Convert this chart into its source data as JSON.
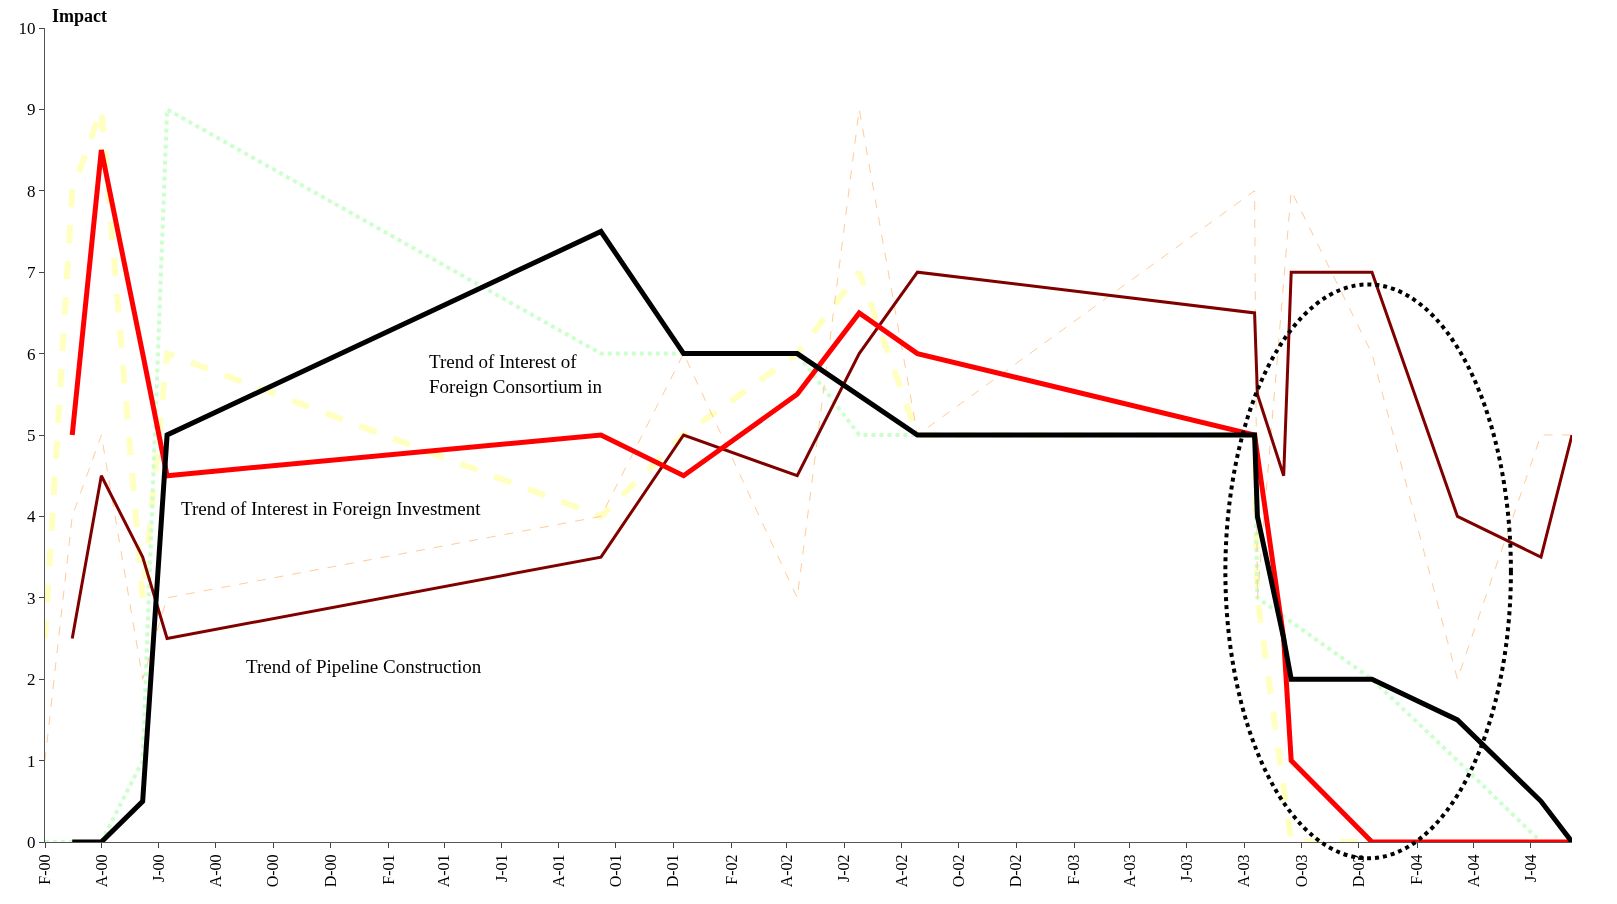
{
  "chart_data": {
    "type": "line",
    "ylabel": "Impact",
    "annotations": [
      "Trend of Interest of\nForeign Consortium in",
      "Trend of Interest in Foreign Investment",
      "Trend of Pipeline Construction"
    ],
    "series": [
      {
        "color": "#ffffc0",
        "line_style": "dashed",
        "x": [
          "2000-02-01",
          "2000-03-01",
          "2000-04-01",
          "2000-05-15",
          "2000-06-10",
          "2001-09-15",
          "2001-12-12",
          "2002-04-12",
          "2002-06-17",
          "2002-08-18",
          "2003-08-12",
          "2003-08-15",
          "2003-09-20",
          "2003-12-15"
        ],
        "values": [
          2.5,
          8,
          9,
          3,
          6,
          4,
          5,
          6,
          7,
          5,
          5,
          3,
          0,
          0
        ]
      },
      {
        "color": "#ccffcc",
        "line_style": "dotted",
        "x": [
          "2000-02-01",
          "2000-04-01",
          "2000-05-15",
          "2000-06-10",
          "2001-09-15",
          "2001-12-12",
          "2002-04-12",
          "2002-06-17",
          "2002-08-18",
          "2003-08-12",
          "2003-08-15",
          "2003-12-15",
          "2004-03-15",
          "2004-06-12"
        ],
        "values": [
          0,
          0,
          1,
          9,
          6,
          6,
          6,
          5,
          5,
          5,
          3,
          2,
          1,
          0
        ]
      },
      {
        "color": "#ffcc99",
        "line_style": "dashed",
        "x": [
          "2000-02-01",
          "2000-03-01",
          "2000-04-01",
          "2000-05-15",
          "2000-06-10",
          "2001-09-15",
          "2001-12-12",
          "2002-04-12",
          "2002-06-17",
          "2002-08-18",
          "2003-08-12",
          "2003-08-15",
          "2003-09-20",
          "2003-12-15",
          "2004-03-15",
          "2004-06-12",
          "2004-07-15"
        ],
        "values": [
          1,
          4,
          5,
          2,
          3,
          4,
          6,
          3,
          9,
          5,
          8,
          3,
          8,
          6,
          2,
          5,
          5
        ]
      },
      {
        "color": "#800000",
        "line_style": "solid",
        "x": [
          "2000-03-01",
          "2000-04-01",
          "2000-05-15",
          "2000-06-10",
          "2001-09-15",
          "2001-12-12",
          "2002-04-12",
          "2002-06-17",
          "2002-08-18",
          "2003-08-12",
          "2003-08-15",
          "2003-09-12",
          "2003-09-20",
          "2003-12-15",
          "2004-03-15",
          "2004-06-12",
          "2004-07-15"
        ],
        "values": [
          2.5,
          4.5,
          3.5,
          2.5,
          3.5,
          5,
          4.5,
          6,
          7,
          6.5,
          5.5,
          4.5,
          7,
          7,
          4,
          3.5,
          5
        ]
      },
      {
        "color": "#ff0000",
        "line_style": "solid",
        "x": [
          "2000-03-01",
          "2000-04-01",
          "2000-05-15",
          "2000-06-10",
          "2001-09-15",
          "2001-12-12",
          "2002-04-12",
          "2002-06-17",
          "2002-08-18",
          "2003-08-12",
          "2003-09-12",
          "2003-09-20",
          "2003-12-15",
          "2004-07-15"
        ],
        "values": [
          5,
          8.5,
          6,
          4.5,
          5,
          4.5,
          5.5,
          6.5,
          6,
          5,
          2.5,
          1,
          0,
          0
        ]
      },
      {
        "color": "#000000",
        "line_style": "solid",
        "x": [
          "2000-03-01",
          "2000-04-01",
          "2000-05-15",
          "2000-06-10",
          "2001-09-15",
          "2001-12-12",
          "2002-04-12",
          "2002-08-18",
          "2003-08-12",
          "2003-08-15",
          "2003-09-12",
          "2003-09-20",
          "2003-12-15",
          "2004-03-15",
          "2004-06-12",
          "2004-07-15"
        ],
        "values": [
          0,
          0,
          0.5,
          5,
          7.5,
          6,
          6,
          5,
          5,
          4,
          2.5,
          2,
          2,
          1.5,
          0.5,
          0
        ]
      }
    ],
    "xlim": [
      "2000-02-01",
      "2004-07-15"
    ],
    "xticks": [
      {
        "value": "2000-02-01",
        "label": "F-00"
      },
      {
        "value": "2000-04-01",
        "label": "A-00"
      },
      {
        "value": "2000-06-01",
        "label": "J-00"
      },
      {
        "value": "2000-08-01",
        "label": "A-00"
      },
      {
        "value": "2000-10-01",
        "label": "O-00"
      },
      {
        "value": "2000-12-01",
        "label": "D-00"
      },
      {
        "value": "2001-02-01",
        "label": "F-01"
      },
      {
        "value": "2001-04-01",
        "label": "A-01"
      },
      {
        "value": "2001-06-01",
        "label": "J-01"
      },
      {
        "value": "2001-08-01",
        "label": "A-01"
      },
      {
        "value": "2001-10-01",
        "label": "O-01"
      },
      {
        "value": "2001-12-01",
        "label": "D-01"
      },
      {
        "value": "2002-02-01",
        "label": "F-02"
      },
      {
        "value": "2002-04-01",
        "label": "A-02"
      },
      {
        "value": "2002-06-01",
        "label": "J-02"
      },
      {
        "value": "2002-08-01",
        "label": "A-02"
      },
      {
        "value": "2002-10-01",
        "label": "O-02"
      },
      {
        "value": "2002-12-01",
        "label": "D-02"
      },
      {
        "value": "2003-02-01",
        "label": "F-03"
      },
      {
        "value": "2003-04-01",
        "label": "A-03"
      },
      {
        "value": "2003-06-01",
        "label": "J-03"
      },
      {
        "value": "2003-08-01",
        "label": "A-03"
      },
      {
        "value": "2003-10-01",
        "label": "O-03"
      },
      {
        "value": "2003-12-01",
        "label": "D-03"
      },
      {
        "value": "2004-02-01",
        "label": "F-04"
      },
      {
        "value": "2004-04-01",
        "label": "A-04"
      },
      {
        "value": "2004-06-01",
        "label": "J-04"
      }
    ],
    "ylim": [
      0,
      10
    ],
    "yticks": [
      0,
      1,
      2,
      3,
      4,
      5,
      6,
      7,
      8,
      9,
      10
    ],
    "marker": "none"
  }
}
